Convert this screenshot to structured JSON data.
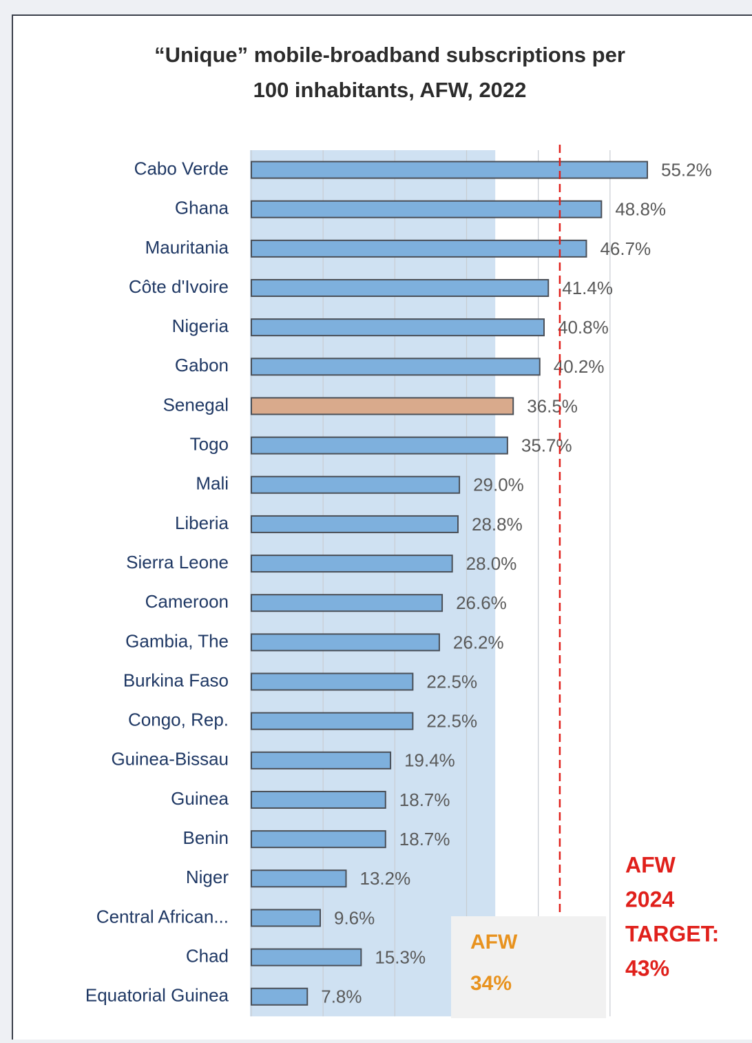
{
  "chart_data": {
    "type": "hbar",
    "title_lines": [
      "“Unique” mobile-broadband subscriptions per",
      "100 inhabitants, AFW, 2022"
    ],
    "categories": [
      "Cabo Verde",
      "Ghana",
      "Mauritania",
      "Côte d'Ivoire",
      "Nigeria",
      "Gabon",
      "Senegal",
      "Togo",
      "Mali",
      "Liberia",
      "Sierra Leone",
      "Cameroon",
      "Gambia, The",
      "Burkina Faso",
      "Congo, Rep.",
      "Guinea-Bissau",
      "Guinea",
      "Benin",
      "Niger",
      "Central African...",
      "Chad",
      "Equatorial Guinea"
    ],
    "values": [
      55.2,
      48.8,
      46.7,
      41.4,
      40.8,
      40.2,
      36.5,
      35.7,
      29.0,
      28.8,
      28.0,
      26.6,
      26.2,
      22.5,
      22.5,
      19.4,
      18.7,
      18.7,
      13.2,
      9.6,
      15.3,
      7.8
    ],
    "value_labels": [
      "55.2%",
      "48.8%",
      "46.7%",
      "41.4%",
      "40.8%",
      "40.2%",
      "36.5%",
      "35.7%",
      "29.0%",
      "28.8%",
      "28.0%",
      "26.6%",
      "26.2%",
      "22.5%",
      "22.5%",
      "19.4%",
      "18.7%",
      "18.7%",
      "13.2%",
      "9.6%",
      "15.3%",
      "7.8%"
    ],
    "bar_colors": [
      "#7eb0dd",
      "#7eb0dd",
      "#7eb0dd",
      "#7eb0dd",
      "#7eb0dd",
      "#7eb0dd",
      "#d9aa8c",
      "#7eb0dd",
      "#7eb0dd",
      "#7eb0dd",
      "#7eb0dd",
      "#7eb0dd",
      "#7eb0dd",
      "#7eb0dd",
      "#7eb0dd",
      "#7eb0dd",
      "#7eb0dd",
      "#7eb0dd",
      "#7eb0dd",
      "#7eb0dd",
      "#7eb0dd",
      "#7eb0dd"
    ],
    "xlim": [
      0,
      60
    ],
    "xticks": [
      0,
      10,
      20,
      30,
      40,
      50
    ],
    "grid": true,
    "average": {
      "value": 34,
      "color": "#cfe1f2",
      "label_color": "#e8921e",
      "label_lines": [
        "AFW",
        "34%"
      ]
    },
    "target": {
      "value": 43,
      "color": "#e0201b",
      "label_lines": [
        "AFW",
        "2024",
        "TARGET:",
        "43%"
      ]
    }
  }
}
